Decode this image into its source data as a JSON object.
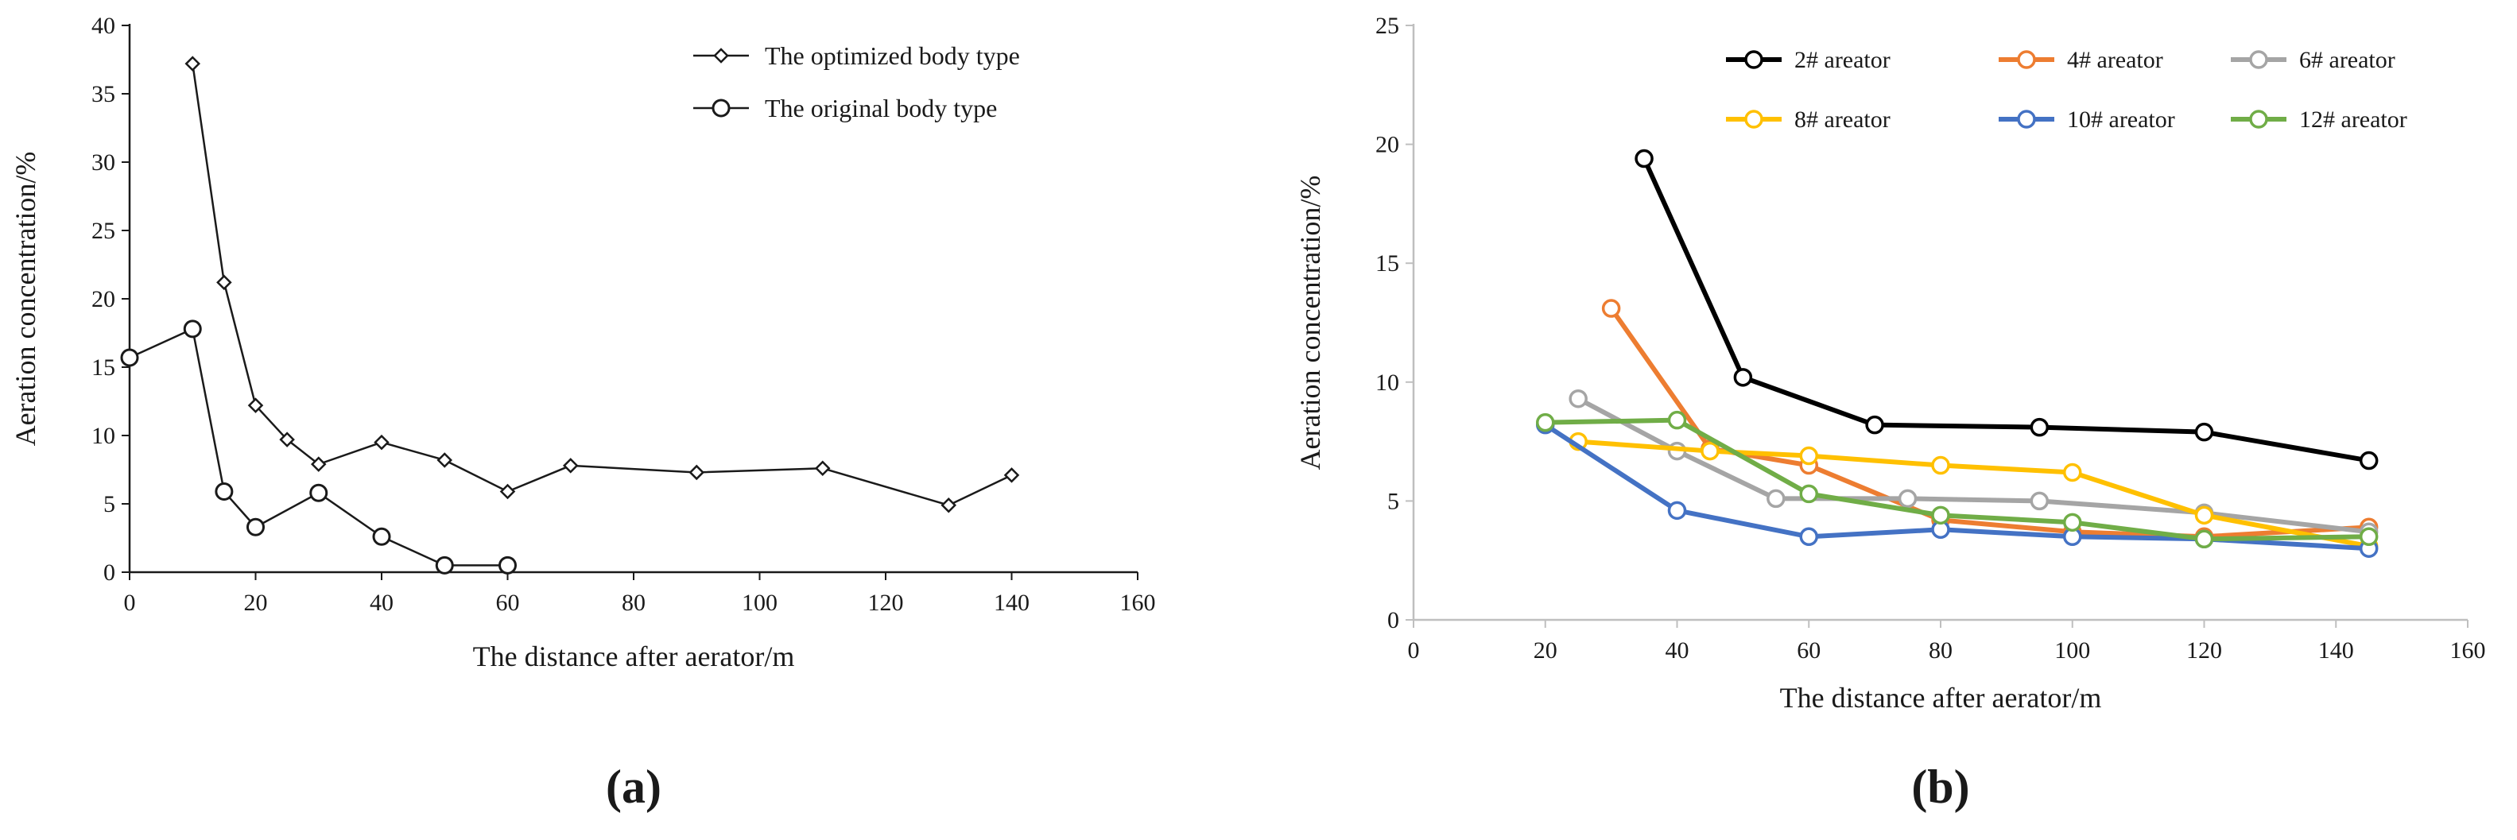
{
  "chart_data": [
    {
      "type": "line",
      "panel_label": "(a)",
      "xlabel": "The distance after aerator/m",
      "ylabel": "Aeration concentration/%",
      "xlim": [
        0,
        160
      ],
      "ylim": [
        0,
        40
      ],
      "xticks": [
        0,
        20,
        40,
        60,
        80,
        100,
        120,
        140,
        160
      ],
      "yticks": [
        0,
        5,
        10,
        15,
        20,
        25,
        30,
        35,
        40
      ],
      "grid": false,
      "legend_position": "top-right",
      "series": [
        {
          "name": "The optimized body type",
          "marker": "diamond",
          "color": "#1a1a1a",
          "x": [
            10,
            15,
            20,
            25,
            30,
            40,
            50,
            60,
            70,
            90,
            110,
            130,
            140
          ],
          "y": [
            37.2,
            21.2,
            12.2,
            9.7,
            7.9,
            9.5,
            8.2,
            5.9,
            7.8,
            7.3,
            7.6,
            4.9,
            7.1
          ]
        },
        {
          "name": "The original body type",
          "marker": "circle",
          "color": "#1a1a1a",
          "x": [
            0,
            10,
            15,
            20,
            30,
            40,
            50,
            60
          ],
          "y": [
            15.7,
            17.8,
            5.9,
            3.3,
            5.8,
            2.6,
            0.5,
            0.5
          ]
        }
      ]
    },
    {
      "type": "line",
      "panel_label": "(b)",
      "xlabel": "The distance after aerator/m",
      "ylabel": "Aeration concentration/%",
      "xlim": [
        0,
        160
      ],
      "ylim": [
        0,
        25
      ],
      "xticks": [
        0,
        20,
        40,
        60,
        80,
        100,
        120,
        140,
        160
      ],
      "yticks": [
        0,
        5,
        10,
        15,
        20,
        25
      ],
      "grid": false,
      "legend_position": "top",
      "series": [
        {
          "name": "2# areator",
          "color": "#000000",
          "x": [
            35,
            50,
            70,
            95,
            120,
            145
          ],
          "y": [
            19.4,
            10.2,
            8.2,
            8.1,
            7.9,
            6.7
          ]
        },
        {
          "name": "4# areator",
          "color": "#ED7D31",
          "x": [
            30,
            45,
            60,
            80,
            100,
            120,
            145
          ],
          "y": [
            13.1,
            7.2,
            6.5,
            4.2,
            3.7,
            3.5,
            3.9
          ]
        },
        {
          "name": "6# areator",
          "color": "#A5A5A5",
          "x": [
            25,
            40,
            55,
            75,
            95,
            120,
            145
          ],
          "y": [
            9.3,
            7.1,
            5.1,
            5.1,
            5.0,
            4.5,
            3.7
          ]
        },
        {
          "name": "8# areator",
          "color": "#FFC000",
          "x": [
            25,
            45,
            60,
            80,
            100,
            120,
            145
          ],
          "y": [
            7.5,
            7.1,
            6.9,
            6.5,
            6.2,
            4.4,
            3.1
          ]
        },
        {
          "name": "10# areator",
          "color": "#4472C4",
          "x": [
            20,
            40,
            60,
            80,
            100,
            120,
            145
          ],
          "y": [
            8.2,
            4.6,
            3.5,
            3.8,
            3.5,
            3.4,
            3.0
          ]
        },
        {
          "name": "12# areator",
          "color": "#70AD47",
          "x": [
            20,
            40,
            60,
            80,
            100,
            120,
            145
          ],
          "y": [
            8.3,
            8.4,
            5.3,
            4.4,
            4.1,
            3.4,
            3.5
          ]
        }
      ]
    }
  ]
}
